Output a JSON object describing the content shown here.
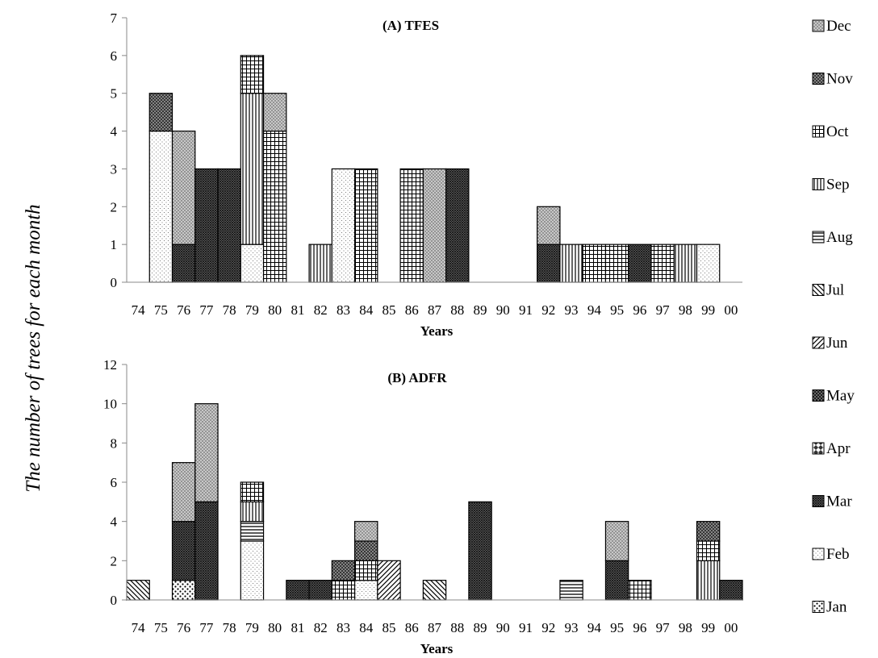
{
  "chart_data": [
    {
      "type": "bar",
      "stacked": true,
      "title": "(A) TFES",
      "xlabel": "Years",
      "ylabel": "The number of trees for each month",
      "ylim": [
        0,
        7
      ],
      "yticks": [
        0,
        1,
        2,
        3,
        4,
        5,
        6,
        7
      ],
      "categories": [
        "74",
        "75",
        "76",
        "77",
        "78",
        "79",
        "80",
        "81",
        "82",
        "83",
        "84",
        "85",
        "86",
        "87",
        "88",
        "89",
        "90",
        "91",
        "92",
        "93",
        "94",
        "95",
        "96",
        "97",
        "98",
        "99",
        "00"
      ],
      "series": [
        {
          "name": "Jan",
          "values": [
            0,
            0,
            0,
            0,
            0,
            0,
            0,
            0,
            0,
            0,
            0,
            0,
            0,
            0,
            0,
            0,
            0,
            0,
            0,
            0,
            0,
            0,
            0,
            0,
            0,
            0,
            0
          ]
        },
        {
          "name": "Feb",
          "values": [
            0,
            4,
            0,
            0,
            0,
            1,
            0,
            0,
            0,
            3,
            0,
            0,
            0,
            0,
            0,
            0,
            0,
            0,
            0,
            0,
            0,
            0,
            0,
            0,
            0,
            1,
            0
          ]
        },
        {
          "name": "Mar",
          "values": [
            0,
            0,
            1,
            3,
            3,
            0,
            0,
            0,
            0,
            0,
            0,
            0,
            0,
            0,
            3,
            0,
            0,
            0,
            1,
            0,
            0,
            0,
            1,
            0,
            0,
            0,
            0
          ]
        },
        {
          "name": "Apr",
          "values": [
            0,
            0,
            0,
            0,
            0,
            0,
            0,
            0,
            0,
            0,
            0,
            0,
            0,
            0,
            0,
            0,
            0,
            0,
            0,
            0,
            0,
            0,
            0,
            0,
            0,
            0,
            0
          ]
        },
        {
          "name": "May",
          "values": [
            0,
            0,
            0,
            0,
            0,
            0,
            0,
            0,
            0,
            0,
            0,
            0,
            0,
            0,
            0,
            0,
            0,
            0,
            0,
            0,
            0,
            0,
            0,
            0,
            0,
            0,
            0
          ]
        },
        {
          "name": "Jun",
          "values": [
            0,
            0,
            0,
            0,
            0,
            0,
            0,
            0,
            0,
            0,
            0,
            0,
            0,
            0,
            0,
            0,
            0,
            0,
            0,
            0,
            0,
            0,
            0,
            0,
            0,
            0,
            0
          ]
        },
        {
          "name": "Jul",
          "values": [
            0,
            0,
            0,
            0,
            0,
            0,
            0,
            0,
            0,
            0,
            0,
            0,
            0,
            0,
            0,
            0,
            0,
            0,
            0,
            0,
            0,
            0,
            0,
            0,
            0,
            0,
            0
          ]
        },
        {
          "name": "Aug",
          "values": [
            0,
            0,
            0,
            0,
            0,
            0,
            0,
            0,
            0,
            0,
            0,
            0,
            0,
            0,
            0,
            0,
            0,
            0,
            0,
            0,
            0,
            0,
            0,
            0,
            0,
            0,
            0
          ]
        },
        {
          "name": "Sep",
          "values": [
            0,
            0,
            0,
            0,
            0,
            4,
            0,
            0,
            1,
            0,
            0,
            0,
            0,
            0,
            0,
            0,
            0,
            0,
            0,
            1,
            0,
            0,
            0,
            0,
            1,
            0,
            0
          ]
        },
        {
          "name": "Oct",
          "values": [
            0,
            0,
            0,
            0,
            0,
            1,
            4,
            0,
            0,
            0,
            3,
            0,
            3,
            0,
            0,
            0,
            0,
            0,
            0,
            0,
            1,
            1,
            0,
            1,
            0,
            0,
            0
          ]
        },
        {
          "name": "Nov",
          "values": [
            0,
            1,
            0,
            0,
            0,
            0,
            0,
            0,
            0,
            0,
            0,
            0,
            0,
            0,
            0,
            0,
            0,
            0,
            0,
            0,
            0,
            0,
            0,
            0,
            0,
            0,
            0
          ]
        },
        {
          "name": "Dec",
          "values": [
            0,
            0,
            3,
            0,
            0,
            0,
            1,
            0,
            0,
            0,
            0,
            0,
            0,
            3,
            0,
            0,
            0,
            0,
            1,
            0,
            0,
            0,
            0,
            0,
            0,
            0,
            0
          ]
        }
      ]
    },
    {
      "type": "bar",
      "stacked": true,
      "title": "(B) ADFR",
      "xlabel": "Years",
      "ylabel": "The number of trees for each month",
      "ylim": [
        0,
        12
      ],
      "yticks": [
        0,
        2,
        4,
        6,
        8,
        10,
        12
      ],
      "categories": [
        "74",
        "75",
        "76",
        "77",
        "78",
        "79",
        "80",
        "81",
        "82",
        "83",
        "84",
        "85",
        "86",
        "87",
        "88",
        "89",
        "90",
        "91",
        "92",
        "93",
        "94",
        "95",
        "96",
        "97",
        "98",
        "99",
        "00"
      ],
      "series": [
        {
          "name": "Jan",
          "values": [
            0,
            0,
            1,
            0,
            0,
            0,
            0,
            0,
            0,
            0,
            0,
            0,
            0,
            0,
            0,
            0,
            0,
            0,
            0,
            0,
            0,
            0,
            0,
            0,
            0,
            0,
            0
          ]
        },
        {
          "name": "Feb",
          "values": [
            0,
            0,
            0,
            0,
            0,
            3,
            0,
            0,
            0,
            0,
            1,
            0,
            0,
            0,
            0,
            0,
            0,
            0,
            0,
            0,
            0,
            0,
            0,
            0,
            0,
            0,
            0
          ]
        },
        {
          "name": "Mar",
          "values": [
            0,
            0,
            3,
            5,
            0,
            0,
            0,
            1,
            1,
            0,
            0,
            0,
            0,
            0,
            0,
            5,
            0,
            0,
            0,
            0,
            0,
            2,
            0,
            0,
            0,
            0,
            1
          ]
        },
        {
          "name": "Apr",
          "values": [
            0,
            0,
            0,
            0,
            0,
            0,
            0,
            0,
            0,
            0,
            0,
            0,
            0,
            0,
            0,
            0,
            0,
            0,
            0,
            0,
            0,
            0,
            0,
            0,
            0,
            0,
            0
          ]
        },
        {
          "name": "May",
          "values": [
            0,
            0,
            0,
            0,
            0,
            0,
            0,
            0,
            0,
            0,
            0,
            0,
            0,
            0,
            0,
            0,
            0,
            0,
            0,
            0,
            0,
            0,
            0,
            0,
            0,
            0,
            0
          ]
        },
        {
          "name": "Jun",
          "values": [
            0,
            0,
            0,
            0,
            0,
            0,
            0,
            0,
            0,
            0,
            0,
            2,
            0,
            0,
            0,
            0,
            0,
            0,
            0,
            0,
            0,
            0,
            0,
            0,
            0,
            0,
            0
          ]
        },
        {
          "name": "Jul",
          "values": [
            1,
            0,
            0,
            0,
            0,
            0,
            0,
            0,
            0,
            0,
            0,
            0,
            0,
            1,
            0,
            0,
            0,
            0,
            0,
            0,
            0,
            0,
            0,
            0,
            0,
            0,
            0
          ]
        },
        {
          "name": "Aug",
          "values": [
            0,
            0,
            0,
            0,
            0,
            1,
            0,
            0,
            0,
            0,
            0,
            0,
            0,
            0,
            0,
            0,
            0,
            0,
            0,
            1,
            0,
            0,
            0,
            0,
            0,
            0,
            0
          ]
        },
        {
          "name": "Sep",
          "values": [
            0,
            0,
            0,
            0,
            0,
            1,
            0,
            0,
            0,
            0,
            0,
            0,
            0,
            0,
            0,
            0,
            0,
            0,
            0,
            0,
            0,
            0,
            0,
            0,
            0,
            2,
            0
          ]
        },
        {
          "name": "Oct",
          "values": [
            0,
            0,
            0,
            0,
            0,
            1,
            0,
            0,
            0,
            1,
            1,
            0,
            0,
            0,
            0,
            0,
            0,
            0,
            0,
            0,
            0,
            0,
            1,
            0,
            0,
            1,
            0
          ]
        },
        {
          "name": "Nov",
          "values": [
            0,
            0,
            0,
            0,
            0,
            0,
            0,
            0,
            0,
            1,
            1,
            0,
            0,
            0,
            0,
            0,
            0,
            0,
            0,
            0,
            0,
            0,
            0,
            0,
            0,
            1,
            0
          ]
        },
        {
          "name": "Dec",
          "values": [
            0,
            0,
            3,
            5,
            0,
            0,
            0,
            0,
            0,
            0,
            1,
            0,
            0,
            0,
            0,
            0,
            0,
            0,
            0,
            0,
            0,
            2,
            0,
            0,
            0,
            0,
            0
          ]
        }
      ]
    }
  ],
  "legend": {
    "placement": "right",
    "entries": [
      "Dec",
      "Nov",
      "Oct",
      "Sep",
      "Aug",
      "Jul",
      "Jun",
      "May",
      "Apr",
      "Mar",
      "Feb",
      "Jan"
    ]
  },
  "patterns": {
    "Jan": "coarse-dots",
    "Feb": "fine-dots",
    "Mar": "dense-crosshatch",
    "Apr": "diagonal-checker",
    "May": "diagonal-crosshatch",
    "Jun": "diagonal-stripes",
    "Jul": "reverse-diagonal-stripes",
    "Aug": "horizontal-stripes",
    "Sep": "vertical-stripes",
    "Oct": "grid",
    "Nov": "diamond-crosshatch",
    "Dec": "gray-dots"
  }
}
